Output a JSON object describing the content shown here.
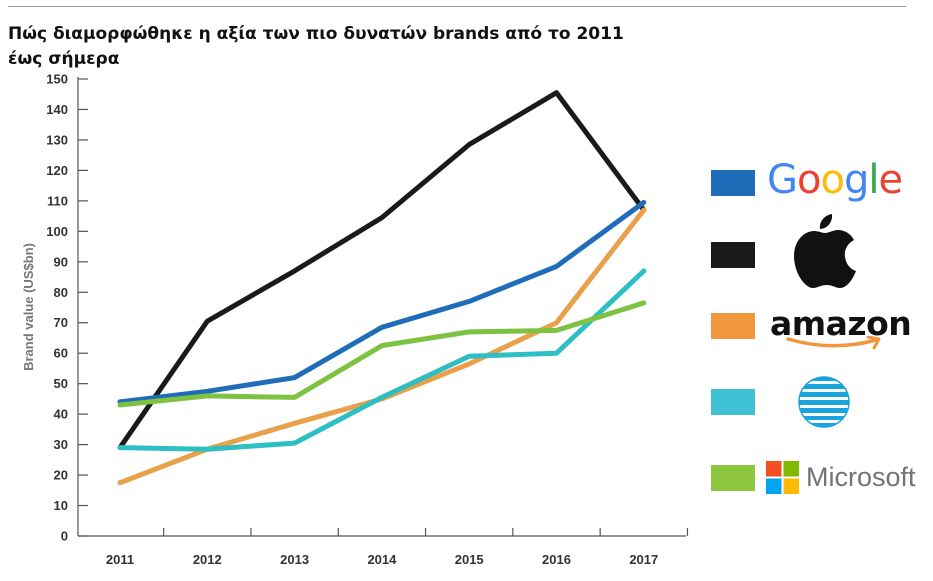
{
  "title": "Πώς διαμορφώθηκε η αξία των πιο δυνατών brands από το 2011 έως σήμερα",
  "legend": [
    {
      "name": "Google",
      "color": "#1f6db8",
      "logo_icon": "google-wordmark"
    },
    {
      "name": "Apple",
      "color": "#1a1a1a",
      "logo_icon": "apple-logo"
    },
    {
      "name": "amazon",
      "color": "#f0963c",
      "logo_icon": "amazon-wordmark"
    },
    {
      "name": "AT&T",
      "color": "#3ec1d3",
      "logo_icon": "att-globe"
    },
    {
      "name": "Microsoft",
      "color": "#8dc63f",
      "logo_icon": "microsoft-logo"
    }
  ],
  "chart_data": {
    "type": "line",
    "title": "Πώς διαμορφώθηκε η αξία των πιο δυνατών brands από το 2011 έως σήμερα",
    "xlabel": "",
    "ylabel": "Brand value (US$bn)",
    "x": [
      "2011",
      "2012",
      "2013",
      "2014",
      "2015",
      "2016",
      "2017"
    ],
    "ylim": [
      0,
      150
    ],
    "yticks": [
      0,
      10,
      20,
      30,
      40,
      50,
      60,
      70,
      80,
      90,
      100,
      110,
      120,
      130,
      140,
      150
    ],
    "grid": false,
    "legend_position": "right",
    "series": [
      {
        "name": "Apple",
        "color": "#1a1a1a",
        "values": [
          29,
          70.5,
          87,
          104.5,
          128.5,
          145.5,
          107
        ]
      },
      {
        "name": "Google",
        "color": "#1f6db8",
        "values": [
          44,
          47.5,
          52,
          68.5,
          77,
          88.5,
          109.5
        ]
      },
      {
        "name": "amazon",
        "color": "#e8a04a",
        "values": [
          17.5,
          28.5,
          37,
          45,
          56.5,
          70,
          107
        ]
      },
      {
        "name": "AT&T",
        "color": "#2ebfc4",
        "values": [
          29,
          28.5,
          30.5,
          45.5,
          59,
          60,
          87
        ]
      },
      {
        "name": "Microsoft",
        "color": "#7ec242",
        "values": [
          43,
          46,
          45.5,
          62.5,
          67,
          67.5,
          76.5
        ]
      }
    ]
  }
}
